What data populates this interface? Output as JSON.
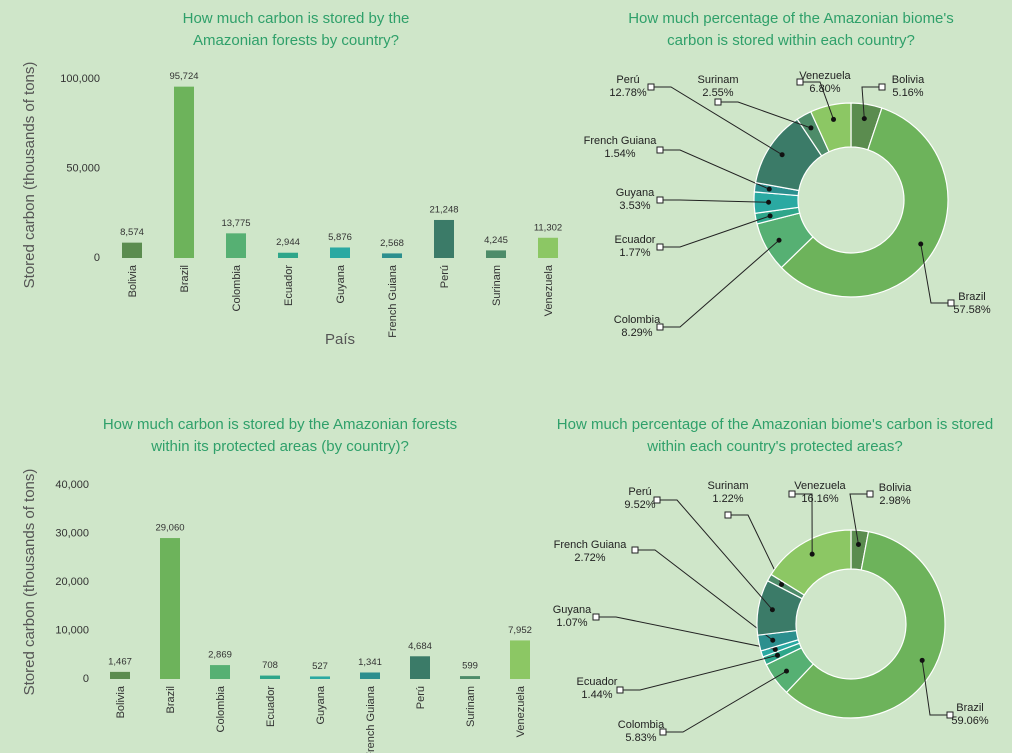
{
  "chart_data": [
    {
      "type": "bar",
      "title": "How much carbon is stored by the Amazonian forests by country?",
      "y_label": "Stored carbon (thousands of tons)",
      "x_label": "País",
      "categories": [
        "Bolivia",
        "Brazil",
        "Colombia",
        "Ecuador",
        "Guyana",
        "French Guiana",
        "Perú",
        "Surinam",
        "Venezuela"
      ],
      "values": [
        8574,
        95724,
        13775,
        2944,
        5876,
        2568,
        21248,
        4245,
        11302
      ],
      "value_labels": [
        "8,574",
        "95,724",
        "13,775",
        "2,944",
        "5,876",
        "2,568",
        "21,248",
        "4,245",
        "11,302"
      ],
      "colors": [
        "#5b8c4f",
        "#6db35b",
        "#56b073",
        "#2ea68a",
        "#2aa9a2",
        "#2c8f8e",
        "#3b7b68",
        "#4d8c69",
        "#8cc764"
      ],
      "ylim": [
        0,
        100000
      ],
      "yticks": [
        0,
        {
          "value": 50000,
          "label": "50,000"
        },
        {
          "value": 100000,
          "label": "100,000"
        }
      ]
    },
    {
      "type": "pie",
      "title": "How much percentage of the Amazonian biome's carbon is stored within each country?",
      "categories": [
        "Bolivia",
        "Brazil",
        "Colombia",
        "Ecuador",
        "Guyana",
        "French Guiana",
        "Perú",
        "Surinam",
        "Venezuela"
      ],
      "values": [
        5.16,
        57.58,
        8.29,
        1.77,
        3.53,
        1.54,
        12.78,
        2.55,
        6.8
      ],
      "value_labels": [
        "5.16%",
        "57.58%",
        "8.29%",
        "1.77%",
        "3.53%",
        "1.54%",
        "12.78%",
        "2.55%",
        "6.80%"
      ],
      "colors": [
        "#5b8c4f",
        "#6db35b",
        "#56b073",
        "#2ea68a",
        "#2aa9a2",
        "#2c8f8e",
        "#3b7b68",
        "#4d8c69",
        "#8cc764"
      ]
    },
    {
      "type": "bar",
      "title": "How much carbon is stored by the Amazonian forests within its protected areas (by country)?",
      "y_label": "Stored carbon (thousands of tons)",
      "categories": [
        "Bolivia",
        "Brazil",
        "Colombia",
        "Ecuador",
        "Guyana",
        "French Guiana",
        "Perú",
        "Surinam",
        "Venezuela"
      ],
      "values": [
        1467,
        29060,
        2869,
        708,
        527,
        1341,
        4684,
        599,
        7952
      ],
      "value_labels": [
        "1,467",
        "29,060",
        "2,869",
        "708",
        "527",
        "1,341",
        "4,684",
        "599",
        "7,952"
      ],
      "colors": [
        "#5b8c4f",
        "#6db35b",
        "#56b073",
        "#2ea68a",
        "#2aa9a2",
        "#2c8f8e",
        "#3b7b68",
        "#4d8c69",
        "#8cc764"
      ],
      "ylim": [
        0,
        40000
      ],
      "yticks": [
        0,
        {
          "value": 10000,
          "label": "10,000"
        },
        {
          "value": 20000,
          "label": "20,000"
        },
        {
          "value": 30000,
          "label": "30,000"
        },
        {
          "value": 40000,
          "label": "40,000"
        }
      ]
    },
    {
      "type": "pie",
      "title": "How much percentage of the Amazonian biome's carbon is stored within each country's protected areas?",
      "categories": [
        "Bolivia",
        "Brazil",
        "Colombia",
        "Ecuador",
        "Guyana",
        "French Guiana",
        "Perú",
        "Surinam",
        "Venezuela"
      ],
      "values": [
        2.98,
        59.06,
        5.83,
        1.44,
        1.07,
        2.72,
        9.52,
        1.22,
        16.16
      ],
      "value_labels": [
        "2.98%",
        "59.06%",
        "5.83%",
        "1.44%",
        "1.07%",
        "2.72%",
        "9.52%",
        "1.22%",
        "16.16%"
      ],
      "colors": [
        "#5b8c4f",
        "#6db35b",
        "#56b073",
        "#2ea68a",
        "#2aa9a2",
        "#2c8f8e",
        "#3b7b68",
        "#4d8c69",
        "#8cc764"
      ]
    }
  ]
}
